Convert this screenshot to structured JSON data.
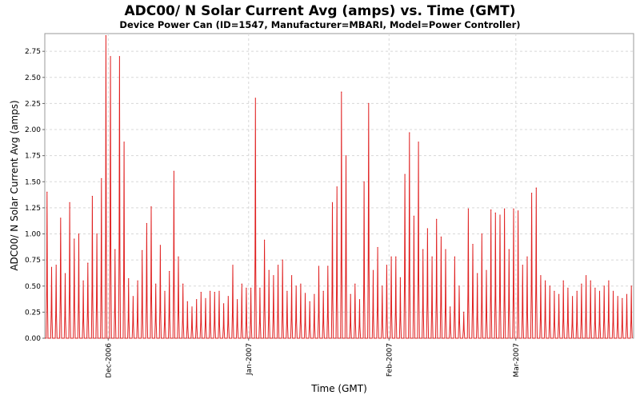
{
  "chart_data": {
    "type": "line",
    "title": "ADC00/ N Solar Current Avg (amps) vs. Time (GMT)",
    "subtitle": "Device Power Can (ID=1547, Manufacturer=MBARI, Model=Power Controller)",
    "xlabel": "Time (GMT)",
    "ylabel": "ADC00/ N Solar Current Avg (amps)",
    "xlim": [
      "2006-11-17",
      "2007-03-27"
    ],
    "ylim": [
      0,
      2.92
    ],
    "grid": true,
    "legend": "none",
    "yticks": [
      0.0,
      0.25,
      0.5,
      0.75,
      1.0,
      1.25,
      1.5,
      1.75,
      2.0,
      2.25,
      2.5,
      2.75
    ],
    "ytick_labels": [
      "0.00",
      "0.25",
      "0.50",
      "0.75",
      "1.00",
      "1.25",
      "1.50",
      "1.75",
      "2.00",
      "2.25",
      "2.50",
      "2.75"
    ],
    "xticks": [
      "2006-12-01",
      "2007-01-01",
      "2007-02-01",
      "2007-03-01"
    ],
    "xtick_labels": [
      "Dec-2006",
      "Jan-2007",
      "Feb-2007",
      "Mar-2007"
    ],
    "series": [
      {
        "name": "",
        "color": "#e02020",
        "daily_peak_dates": [
          "2006-11-17",
          "2006-11-18",
          "2006-11-19",
          "2006-11-20",
          "2006-11-21",
          "2006-11-22",
          "2006-11-23",
          "2006-11-24",
          "2006-11-25",
          "2006-11-26",
          "2006-11-27",
          "2006-11-28",
          "2006-11-29",
          "2006-11-30",
          "2006-12-01",
          "2006-12-02",
          "2006-12-03",
          "2006-12-04",
          "2006-12-05",
          "2006-12-06",
          "2006-12-07",
          "2006-12-08",
          "2006-12-09",
          "2006-12-10",
          "2006-12-11",
          "2006-12-12",
          "2006-12-13",
          "2006-12-14",
          "2006-12-15",
          "2006-12-16",
          "2006-12-17",
          "2006-12-18",
          "2006-12-19",
          "2006-12-20",
          "2006-12-21",
          "2006-12-22",
          "2006-12-23",
          "2006-12-24",
          "2006-12-25",
          "2006-12-26",
          "2006-12-27",
          "2006-12-28",
          "2006-12-29",
          "2006-12-30",
          "2006-12-31",
          "2007-01-01",
          "2007-01-02",
          "2007-01-03",
          "2007-01-04",
          "2007-01-05",
          "2007-01-06",
          "2007-01-07",
          "2007-01-08",
          "2007-01-09",
          "2007-01-10",
          "2007-01-11",
          "2007-01-12",
          "2007-01-13",
          "2007-01-14",
          "2007-01-15",
          "2007-01-16",
          "2007-01-17",
          "2007-01-18",
          "2007-01-19",
          "2007-01-20",
          "2007-01-21",
          "2007-01-22",
          "2007-01-23",
          "2007-01-24",
          "2007-01-25",
          "2007-01-26",
          "2007-01-27",
          "2007-01-28",
          "2007-01-29",
          "2007-01-30",
          "2007-01-31",
          "2007-02-01",
          "2007-02-02",
          "2007-02-03",
          "2007-02-04",
          "2007-02-05",
          "2007-02-06",
          "2007-02-07",
          "2007-02-08",
          "2007-02-09",
          "2007-02-10",
          "2007-02-11",
          "2007-02-12",
          "2007-02-13",
          "2007-02-14",
          "2007-02-15",
          "2007-02-16",
          "2007-02-17",
          "2007-02-18",
          "2007-02-19",
          "2007-02-20",
          "2007-02-21",
          "2007-02-22",
          "2007-02-23",
          "2007-02-24",
          "2007-02-25",
          "2007-02-26",
          "2007-02-27",
          "2007-02-28",
          "2007-03-01",
          "2007-03-02",
          "2007-03-03",
          "2007-03-04",
          "2007-03-05",
          "2007-03-06",
          "2007-03-07",
          "2007-03-08",
          "2007-03-09",
          "2007-03-10",
          "2007-03-11",
          "2007-03-12",
          "2007-03-13",
          "2007-03-14",
          "2007-03-15",
          "2007-03-16",
          "2007-03-17",
          "2007-03-18",
          "2007-03-19",
          "2007-03-20",
          "2007-03-21",
          "2007-03-22",
          "2007-03-23",
          "2007-03-24",
          "2007-03-25",
          "2007-03-26"
        ],
        "daily_peak_values": [
          1.4,
          0.68,
          0.7,
          1.15,
          0.62,
          1.3,
          0.95,
          1.0,
          0.55,
          0.72,
          1.36,
          1.0,
          1.53,
          2.9,
          2.7,
          0.85,
          2.7,
          1.88,
          0.57,
          0.4,
          0.55,
          0.84,
          1.1,
          1.26,
          0.52,
          0.89,
          0.45,
          0.64,
          1.6,
          0.78,
          0.52,
          0.35,
          0.3,
          0.37,
          0.44,
          0.38,
          0.45,
          0.44,
          0.45,
          0.33,
          0.4,
          0.7,
          0.37,
          0.52,
          0.48,
          0.48,
          2.3,
          0.48,
          0.94,
          0.65,
          0.6,
          0.7,
          0.75,
          0.45,
          0.6,
          0.5,
          0.52,
          0.43,
          0.35,
          0.42,
          0.69,
          0.45,
          0.69,
          1.3,
          1.45,
          2.36,
          1.75,
          0.42,
          0.52,
          0.37,
          1.5,
          2.25,
          0.65,
          0.87,
          0.5,
          0.7,
          0.78,
          0.78,
          0.58,
          1.57,
          1.97,
          1.17,
          1.88,
          0.85,
          1.05,
          0.78,
          1.14,
          0.97,
          0.85,
          0.3,
          0.78,
          0.5,
          0.25,
          1.24,
          0.9,
          0.62,
          1.0,
          0.65,
          1.23,
          1.2,
          1.18,
          1.24,
          0.85,
          1.24,
          1.22,
          0.7,
          0.78,
          1.39,
          1.44,
          0.6,
          0.55,
          0.5,
          0.45,
          0.42,
          0.55,
          0.48,
          0.4,
          0.45,
          0.52,
          0.6,
          0.55,
          0.48,
          0.45,
          0.5,
          0.55,
          0.45,
          0.4,
          0.38,
          0.42,
          0.5
        ]
      }
    ]
  }
}
